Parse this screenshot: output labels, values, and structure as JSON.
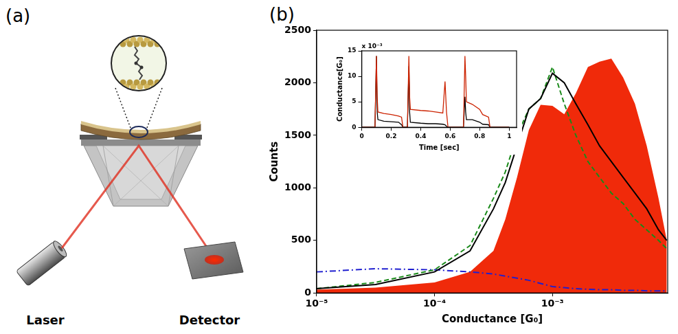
{
  "figure": {
    "panel_labels": [
      "(a)",
      "(b)"
    ],
    "diagram": {
      "laser": "Laser",
      "detector": "Detector"
    }
  },
  "chart_data": [
    {
      "type": "line",
      "x_label": "Conductance [G₀]",
      "y_label": "Counts",
      "log": "x",
      "grid": false,
      "xlim": [
        1e-05,
        0.0095
      ],
      "xticks": [
        {
          "value": 1e-05,
          "label": "10⁻⁵"
        },
        {
          "value": 0.0001,
          "label": "10⁻⁴"
        },
        {
          "value": 0.001,
          "label": "10⁻³"
        }
      ],
      "ylim": [
        0,
        2500
      ],
      "yticks": [
        0,
        500,
        1000,
        1500,
        2000,
        2500
      ],
      "x": [
        1e-05,
        3.16e-05,
        0.0001,
        0.0002,
        0.000316,
        0.000398,
        0.000501,
        0.000631,
        0.000794,
        0.001,
        0.00126,
        0.00158,
        0.002,
        0.00251,
        0.00316,
        0.00398,
        0.00501,
        0.00631,
        0.00794,
        0.00933
      ],
      "series": [
        {
          "color": "#000000",
          "line_style": "solid",
          "type": "line",
          "values": [
            40,
            80,
            200,
            400,
            800,
            1050,
            1400,
            1750,
            1850,
            2090,
            2000,
            1800,
            1600,
            1400,
            1250,
            1100,
            950,
            800,
            600,
            500
          ]
        },
        {
          "color": "#1a8a1a",
          "line_style": "dashed",
          "type": "line",
          "values": [
            40,
            100,
            220,
            450,
            900,
            1150,
            1500,
            1750,
            1850,
            2150,
            1800,
            1500,
            1250,
            1100,
            950,
            850,
            700,
            600,
            500,
            420
          ]
        },
        {
          "color": "#1f1fd0",
          "line_style": "dashdot",
          "type": "line",
          "values": [
            200,
            230,
            220,
            200,
            180,
            160,
            140,
            120,
            90,
            60,
            50,
            40,
            35,
            30,
            30,
            25,
            25,
            20,
            20,
            20
          ]
        },
        {
          "color": "#f02a0a",
          "type": "area",
          "values": [
            30,
            50,
            100,
            200,
            400,
            700,
            1100,
            1550,
            1790,
            1780,
            1700,
            1900,
            2150,
            2200,
            2230,
            2050,
            1800,
            1400,
            900,
            500
          ]
        }
      ]
    },
    {
      "type": "line",
      "x_label": "Time [sec]",
      "y_label": "Conductance[G₀]",
      "annotation": "x 10⁻³",
      "grid": false,
      "xlim": [
        0,
        1.05
      ],
      "xticks": [
        0,
        0.2,
        0.4,
        0.6,
        0.8,
        1
      ],
      "ylim": [
        0,
        15
      ],
      "yticks": [
        0,
        5,
        10,
        15
      ],
      "x": [
        0,
        0.09,
        0.1,
        0.105,
        0.11,
        0.15,
        0.2,
        0.25,
        0.27,
        0.28,
        0.31,
        0.32,
        0.325,
        0.33,
        0.4,
        0.45,
        0.5,
        0.55,
        0.565,
        0.575,
        0.585,
        0.65,
        0.69,
        0.7,
        0.705,
        0.71,
        0.75,
        0.8,
        0.82,
        0.86,
        0.87,
        1.0
      ],
      "series": [
        {
          "color": "#cc2200",
          "line_style": "solid",
          "type": "line",
          "values": [
            0,
            0,
            14,
            6,
            3,
            2.7,
            2.5,
            2.2,
            2,
            0,
            0,
            14,
            6,
            3.5,
            3.3,
            3.2,
            3,
            2.8,
            9,
            3,
            0,
            0,
            0,
            14,
            10,
            5,
            4.5,
            3.5,
            2.5,
            2,
            0,
            0
          ]
        },
        {
          "color": "#000000",
          "line_style": "solid",
          "type": "line",
          "values": [
            0,
            0,
            14,
            3,
            1.5,
            1.2,
            1.1,
            1,
            0.5,
            0,
            0,
            12,
            3,
            1,
            0.8,
            0.7,
            0.7,
            0.6,
            0.5,
            0.2,
            0,
            0,
            0,
            6,
            3,
            1.5,
            1.5,
            1,
            0.6,
            0.5,
            0,
            0
          ]
        }
      ]
    }
  ]
}
